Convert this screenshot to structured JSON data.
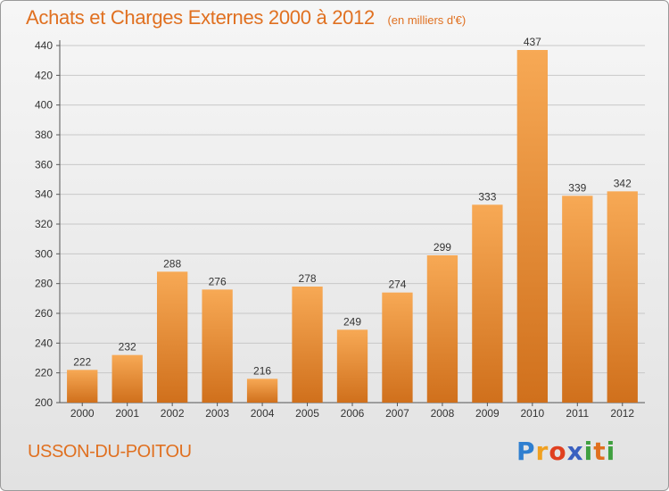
{
  "header": {
    "title": "Achats et Charges Externes 2000 à 2012",
    "subtitle": "(en milliers d'€)"
  },
  "footer": {
    "commune": "USSON-DU-POITOU",
    "logo_text": "Proxiti"
  },
  "colors": {
    "accent": "#e07020",
    "bar_light": "#f5a550",
    "bar_dark": "#c96a18",
    "grid": "#c8c8c8"
  },
  "chart_data": {
    "type": "bar",
    "title": "Achats et Charges Externes 2000 à 2012",
    "subtitle": "(en milliers d'€)",
    "xlabel": "",
    "ylabel": "",
    "categories": [
      "2000",
      "2001",
      "2002",
      "2003",
      "2004",
      "2005",
      "2006",
      "2007",
      "2008",
      "2009",
      "2010",
      "2011",
      "2012"
    ],
    "values": [
      222,
      232,
      288,
      276,
      216,
      278,
      249,
      274,
      299,
      333,
      437,
      339,
      342
    ],
    "ylim": [
      200,
      440
    ],
    "yticks": [
      200,
      220,
      240,
      260,
      280,
      300,
      320,
      340,
      360,
      380,
      400,
      420,
      440
    ],
    "grid": true,
    "legend": "none",
    "data_labels": true
  }
}
